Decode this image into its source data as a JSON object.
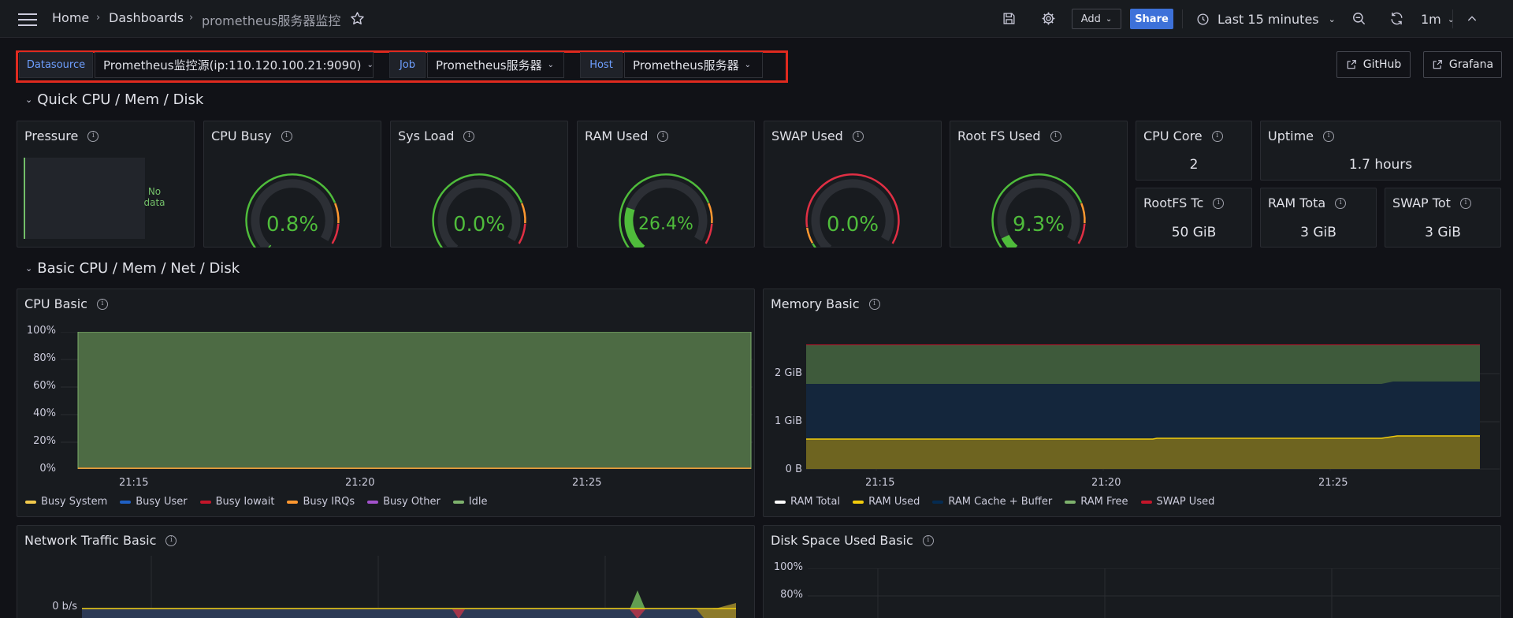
{
  "header": {
    "breadcrumb": [
      "Home",
      "Dashboards",
      "prometheus服务器监控"
    ],
    "add_label": "Add",
    "share_label": "Share",
    "time_range": "Last 15 minutes",
    "refresh_interval": "1m"
  },
  "variables": {
    "datasource_label": "Datasource",
    "datasource_value": "Prometheus监控源(ip:110.120.100.21:9090)",
    "job_label": "Job",
    "job_value": "Prometheus服务器",
    "host_label": "Host",
    "host_value": "Prometheus服务器"
  },
  "links": {
    "github": "GitHub",
    "grafana": "Grafana"
  },
  "rows": {
    "quick": "Quick CPU / Mem / Disk",
    "basic": "Basic CPU / Mem / Net / Disk"
  },
  "pressure": {
    "title": "Pressure",
    "no_data": "No data"
  },
  "gauges": [
    {
      "title": "CPU Busy",
      "value": "0.8%",
      "fraction": 0.008,
      "thresholds": "green-to-red"
    },
    {
      "title": "Sys Load",
      "value": "0.0%",
      "fraction": 0.0,
      "thresholds": "green-to-red"
    },
    {
      "title": "RAM Used",
      "value": "26.4%",
      "fraction": 0.264,
      "thresholds": "green-to-red"
    },
    {
      "title": "SWAP Used",
      "value": "0.0%",
      "fraction": 0.0,
      "thresholds": "red-heavy"
    },
    {
      "title": "Root FS Used",
      "value": "9.3%",
      "fraction": 0.093,
      "thresholds": "green-to-red"
    }
  ],
  "stats": {
    "cpu_core": {
      "title": "CPU Core",
      "value": "2"
    },
    "uptime": {
      "title": "Uptime",
      "value": "1.7 hours"
    },
    "rootfs_total": {
      "title": "RootFS Tc",
      "value": "50 GiB"
    },
    "ram_total": {
      "title": "RAM Tota",
      "value": "3 GiB"
    },
    "swap_total": {
      "title": "SWAP Tot",
      "value": "3 GiB"
    }
  },
  "cpu_basic": {
    "title": "CPU Basic",
    "y_ticks": [
      "100%",
      "80%",
      "60%",
      "40%",
      "20%",
      "0%"
    ],
    "x_ticks": [
      "21:15",
      "21:20",
      "21:25"
    ],
    "legend": [
      {
        "name": "Busy System",
        "color": "#f2c94c"
      },
      {
        "name": "Busy User",
        "color": "#1f60c4"
      },
      {
        "name": "Busy Iowait",
        "color": "#c4162a"
      },
      {
        "name": "Busy IRQs",
        "color": "#ff9830"
      },
      {
        "name": "Busy Other",
        "color": "#a352cc"
      },
      {
        "name": "Idle",
        "color": "#7eb26d"
      }
    ]
  },
  "memory_basic": {
    "title": "Memory Basic",
    "y_ticks": [
      "2 GiB",
      "1 GiB",
      "0 B"
    ],
    "x_ticks": [
      "21:15",
      "21:20",
      "21:25"
    ],
    "legend": [
      {
        "name": "RAM Total",
        "color": "#ffffff"
      },
      {
        "name": "RAM Used",
        "color": "#f2cc0c"
      },
      {
        "name": "RAM Cache + Buffer",
        "color": "#052b51"
      },
      {
        "name": "RAM Free",
        "color": "#7eb26d"
      },
      {
        "name": "SWAP Used",
        "color": "#c4162a"
      }
    ]
  },
  "network_basic": {
    "title": "Network Traffic Basic",
    "y_ticks": [
      "0 b/s"
    ]
  },
  "disk_basic": {
    "title": "Disk Space Used Basic",
    "y_ticks": [
      "100%",
      "80%"
    ]
  },
  "colors": {
    "accent_green": "#4fbc3b",
    "share_blue": "#3d71d9",
    "highlight_red": "#e02a1f"
  }
}
